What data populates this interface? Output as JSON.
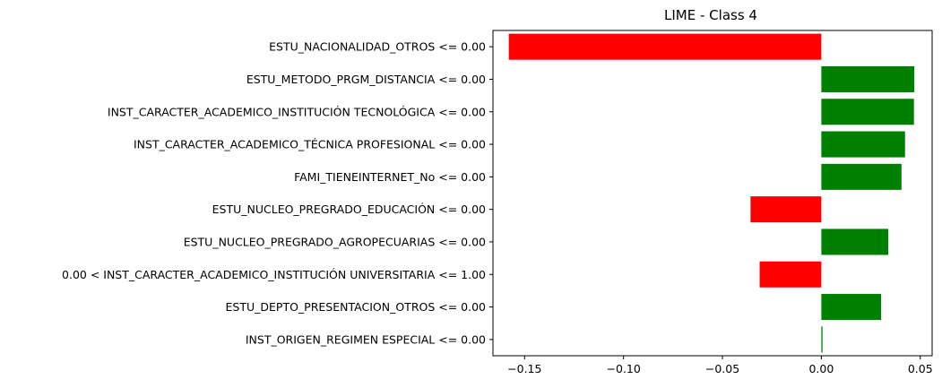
{
  "chart_data": {
    "type": "bar",
    "orientation": "horizontal",
    "title": "LIME - Class 4",
    "xlabel": "",
    "ylabel": "",
    "xlim": [
      -0.166,
      0.056
    ],
    "xticks": [
      -0.15,
      -0.1,
      -0.05,
      0.0,
      0.05
    ],
    "xtick_labels": [
      "−0.15",
      "−0.10",
      "−0.05",
      "0.00",
      "0.05"
    ],
    "grid": false,
    "legend": "none",
    "colors": {
      "positive": "#008000",
      "negative": "#ff0000"
    },
    "categories": [
      "ESTU_NACIONALIDAD_OTROS <= 0.00",
      "ESTU_METODO_PRGM_DISTANCIA <= 0.00",
      "INST_CARACTER_ACADEMICO_INSTITUCIÓN TECNOLÓGICA <= 0.00",
      "INST_CARACTER_ACADEMICO_TÉCNICA PROFESIONAL <= 0.00",
      "FAMI_TIENEINTERNET_No <= 0.00",
      "ESTU_NUCLEO_PREGRADO_EDUCACIÓN <= 0.00",
      "ESTU_NUCLEO_PREGRADO_AGROPECUARIAS <= 0.00",
      "0.00 < INST_CARACTER_ACADEMICO_INSTITUCIÓN UNIVERSITARIA <= 1.00",
      "ESTU_DEPTO_PRESENTACION_OTROS <= 0.00",
      "INST_ORIGEN_REGIMEN ESPECIAL <= 0.00"
    ],
    "values": [
      -0.158,
      0.047,
      0.0468,
      0.0423,
      0.0405,
      -0.0358,
      0.0338,
      -0.0312,
      0.0302,
      0.0006
    ]
  }
}
